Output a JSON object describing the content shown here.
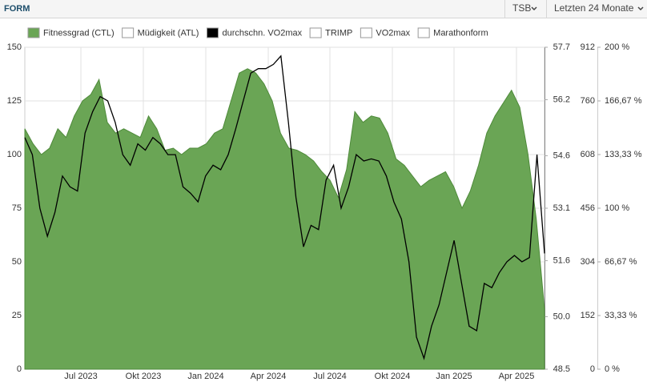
{
  "header": {
    "title": "FORM",
    "dropdowns": [
      "TSB",
      "Letzten 24 Monate"
    ]
  },
  "chart_data": {
    "type": "area-line",
    "xticks": [
      "Jul 2023",
      "Okt 2023",
      "Jan 2024",
      "Apr 2024",
      "Jul 2024",
      "Okt 2024",
      "Jan 2025",
      "Apr 2025"
    ],
    "ylim": [
      0,
      150
    ],
    "yticks": [
      0,
      25,
      50,
      75,
      100,
      125,
      150
    ],
    "y2lim": [
      48.5,
      57.7
    ],
    "y2ticks": [
      48.5,
      {
        "value": 50,
        "label": "50.0"
      },
      51.6,
      53.1,
      54.6,
      56.2,
      57.7
    ],
    "y3lim": [
      0,
      912
    ],
    "y3ticks": [
      0,
      152,
      304,
      456,
      608,
      760,
      912
    ],
    "y4lim": [
      0,
      200
    ],
    "y4ticks": [
      {
        "value": 0,
        "label": "0 %"
      },
      {
        "value": 33.33,
        "label": "33,33 %"
      },
      {
        "value": 66.67,
        "label": "66,67 %"
      },
      {
        "value": 100,
        "label": "100 %"
      },
      {
        "value": 133.33,
        "label": "133,33 %"
      },
      {
        "value": 166.67,
        "label": "166,67 %"
      },
      {
        "value": 200,
        "label": "200 %"
      }
    ],
    "grid": true,
    "series": [
      {
        "name": "Fitnessgrad (CTL)",
        "color": "#6aa555",
        "values": [
          112,
          105,
          100,
          103,
          112,
          108,
          118,
          125,
          128,
          135,
          115,
          110,
          112,
          110,
          108,
          118,
          112,
          102,
          103,
          100,
          103,
          103,
          105,
          110,
          112,
          125,
          138,
          140,
          138,
          133,
          125,
          110,
          103,
          102,
          100,
          97,
          92,
          88,
          80,
          93,
          120,
          115,
          118,
          117,
          110,
          98,
          95,
          90,
          85,
          88,
          90,
          92,
          85,
          75,
          83,
          95,
          110,
          118,
          124,
          130,
          122,
          100,
          70,
          28
        ]
      },
      {
        "name": "Müdigkeit (ATL)",
        "color": "#ffffff"
      },
      {
        "name": "durchschn. VO2max",
        "color": "#000000",
        "axis": "y2",
        "values": [
          55.12,
          54.63,
          53.1,
          52.3,
          52.98,
          54.02,
          53.71,
          53.59,
          55.25,
          55.86,
          56.29,
          56.17,
          55.55,
          54.63,
          54.33,
          54.94,
          54.76,
          55.12,
          54.94,
          54.63,
          54.63,
          53.71,
          53.53,
          53.28,
          54.02,
          54.33,
          54.2,
          54.63,
          55.37,
          56.17,
          56.96,
          57.09,
          57.09,
          57.21,
          57.45,
          55.55,
          53.41,
          52.0,
          52.61,
          52.49,
          53.9,
          54.33,
          53.1,
          53.71,
          54.63,
          54.45,
          54.51,
          54.45,
          54.02,
          53.28,
          52.79,
          51.57,
          49.42,
          48.81,
          49.73,
          50.34,
          51.26,
          52.18,
          50.95,
          49.73,
          49.6,
          50.95,
          50.83,
          51.26,
          51.57,
          51.75,
          51.57,
          51.69,
          54.63,
          51.81
        ]
      },
      {
        "name": "TRIMP",
        "color": "#ffffff"
      },
      {
        "name": "VO2max",
        "color": "#ffffff"
      },
      {
        "name": "Marathonform",
        "color": "#ffffff"
      }
    ]
  }
}
